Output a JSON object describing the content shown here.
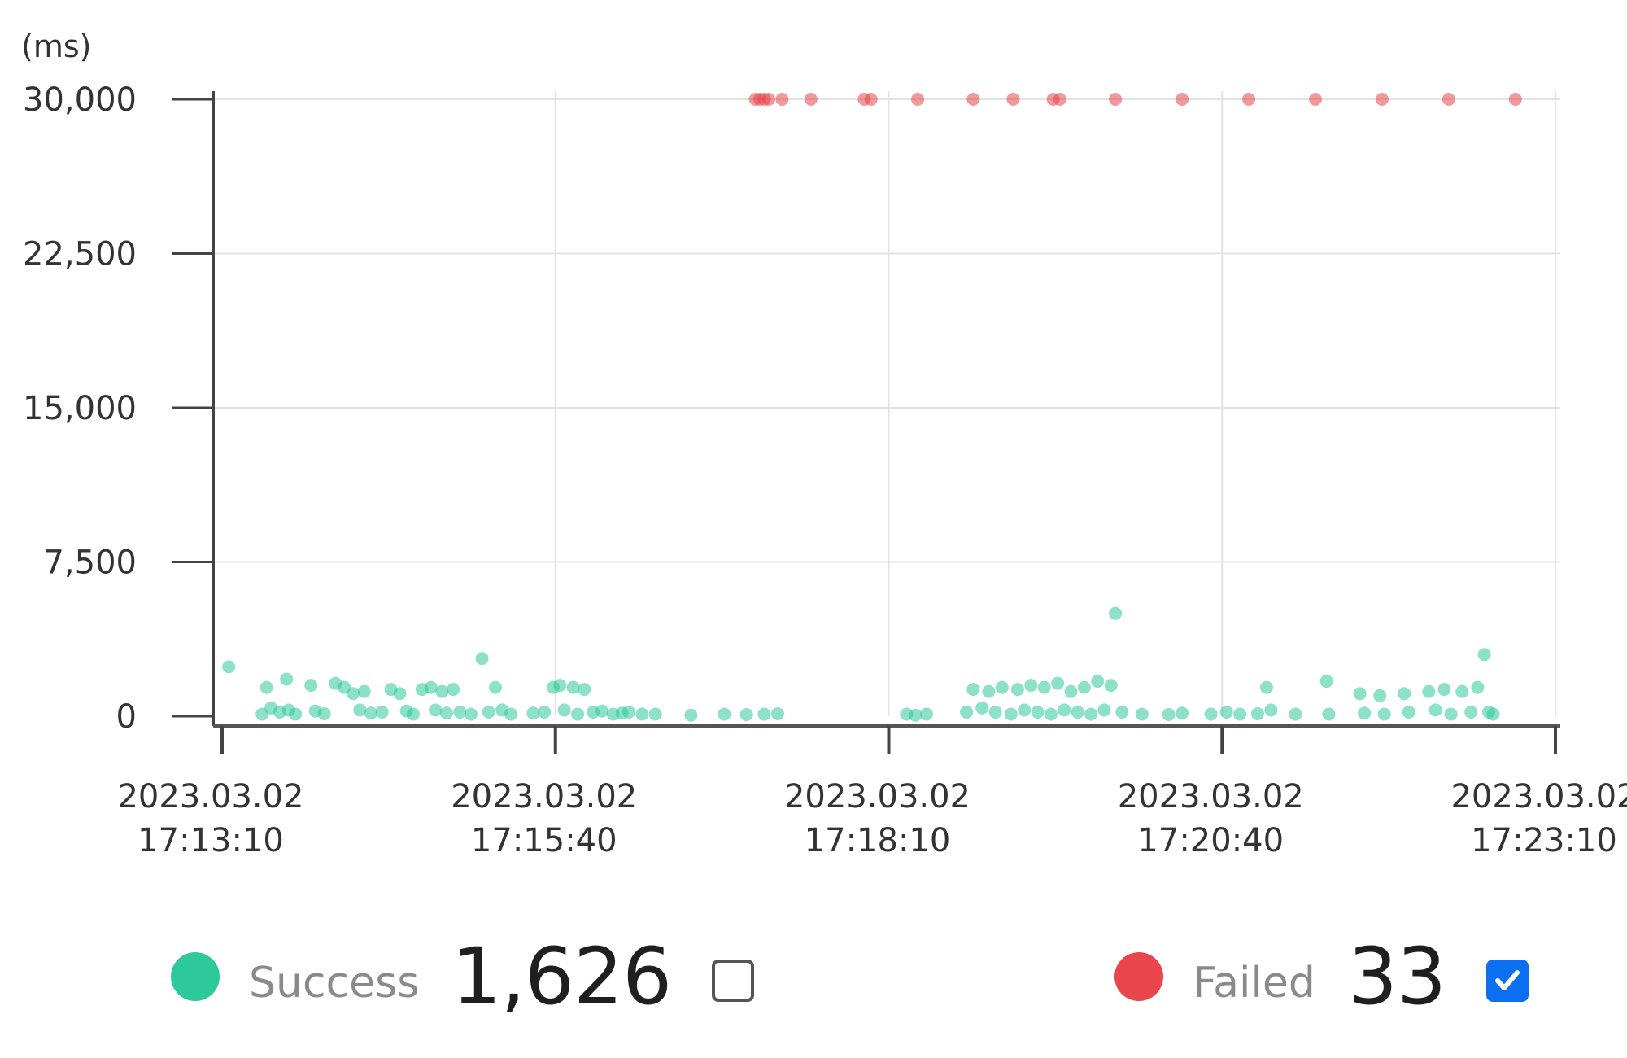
{
  "chart_data": {
    "type": "scatter",
    "title": "",
    "y_unit_label": "(ms)",
    "xlabel": "",
    "ylabel": "",
    "ylim": [
      0,
      30000
    ],
    "y_ticks": [
      {
        "value": 0,
        "label": "0"
      },
      {
        "value": 7500,
        "label": "7,500"
      },
      {
        "value": 15000,
        "label": "15,000"
      },
      {
        "value": 22500,
        "label": "22,500"
      },
      {
        "value": 30000,
        "label": "30,000"
      }
    ],
    "xlim_seconds_of_day": [
      62000,
      62600
    ],
    "x_ticks": [
      {
        "value": 62000,
        "date": "2023.03.02",
        "time": "17:13:10"
      },
      {
        "value": 62150,
        "date": "2023.03.02",
        "time": "17:15:40"
      },
      {
        "value": 62300,
        "date": "2023.03.02",
        "time": "17:18:10"
      },
      {
        "value": 62450,
        "date": "2023.03.02",
        "time": "17:20:40"
      },
      {
        "value": 62600,
        "date": "2023.03.02",
        "time": "17:23:10"
      }
    ],
    "grid": true,
    "series": [
      {
        "name": "Success",
        "color": "#2ec99a",
        "count_label": "1,626",
        "checked": false,
        "points": [
          [
            62003,
            2400
          ],
          [
            62018,
            100
          ],
          [
            62020,
            1400
          ],
          [
            62022,
            400
          ],
          [
            62026,
            200
          ],
          [
            62029,
            1800
          ],
          [
            62030,
            300
          ],
          [
            62033,
            100
          ],
          [
            62040,
            1500
          ],
          [
            62042,
            250
          ],
          [
            62046,
            120
          ],
          [
            62051,
            1600
          ],
          [
            62055,
            1400
          ],
          [
            62059,
            1100
          ],
          [
            62062,
            300
          ],
          [
            62064,
            1200
          ],
          [
            62067,
            150
          ],
          [
            62072,
            200
          ],
          [
            62076,
            1300
          ],
          [
            62080,
            1100
          ],
          [
            62083,
            250
          ],
          [
            62086,
            100
          ],
          [
            62090,
            1300
          ],
          [
            62094,
            1400
          ],
          [
            62096,
            300
          ],
          [
            62099,
            1200
          ],
          [
            62101,
            150
          ],
          [
            62104,
            1300
          ],
          [
            62107,
            200
          ],
          [
            62112,
            100
          ],
          [
            62117,
            2800
          ],
          [
            62120,
            200
          ],
          [
            62123,
            1400
          ],
          [
            62126,
            300
          ],
          [
            62130,
            100
          ],
          [
            62140,
            150
          ],
          [
            62145,
            200
          ],
          [
            62149,
            1400
          ],
          [
            62152,
            1500
          ],
          [
            62154,
            300
          ],
          [
            62158,
            1400
          ],
          [
            62160,
            100
          ],
          [
            62163,
            1300
          ],
          [
            62167,
            200
          ],
          [
            62171,
            250
          ],
          [
            62176,
            100
          ],
          [
            62180,
            150
          ],
          [
            62183,
            200
          ],
          [
            62189,
            100
          ],
          [
            62195,
            100
          ],
          [
            62211,
            50
          ],
          [
            62226,
            100
          ],
          [
            62236,
            80
          ],
          [
            62244,
            100
          ],
          [
            62250,
            120
          ],
          [
            62308,
            100
          ],
          [
            62312,
            50
          ],
          [
            62317,
            100
          ],
          [
            62335,
            200
          ],
          [
            62338,
            1300
          ],
          [
            62342,
            400
          ],
          [
            62345,
            1200
          ],
          [
            62348,
            200
          ],
          [
            62351,
            1400
          ],
          [
            62355,
            100
          ],
          [
            62358,
            1300
          ],
          [
            62361,
            300
          ],
          [
            62364,
            1500
          ],
          [
            62367,
            200
          ],
          [
            62370,
            1400
          ],
          [
            62373,
            100
          ],
          [
            62376,
            1600
          ],
          [
            62379,
            300
          ],
          [
            62382,
            1200
          ],
          [
            62385,
            200
          ],
          [
            62388,
            1400
          ],
          [
            62391,
            100
          ],
          [
            62394,
            1700
          ],
          [
            62397,
            300
          ],
          [
            62400,
            1500
          ],
          [
            62402,
            5000
          ],
          [
            62405,
            200
          ],
          [
            62414,
            100
          ],
          [
            62426,
            80
          ],
          [
            62432,
            150
          ],
          [
            62445,
            100
          ],
          [
            62452,
            200
          ],
          [
            62458,
            100
          ],
          [
            62466,
            120
          ],
          [
            62470,
            1400
          ],
          [
            62472,
            300
          ],
          [
            62483,
            100
          ],
          [
            62497,
            1700
          ],
          [
            62498,
            100
          ],
          [
            62512,
            1100
          ],
          [
            62514,
            150
          ],
          [
            62521,
            1000
          ],
          [
            62523,
            100
          ],
          [
            62532,
            1100
          ],
          [
            62534,
            200
          ],
          [
            62543,
            1200
          ],
          [
            62546,
            300
          ],
          [
            62550,
            1300
          ],
          [
            62553,
            100
          ],
          [
            62558,
            1200
          ],
          [
            62562,
            200
          ],
          [
            62565,
            1400
          ],
          [
            62568,
            3000
          ],
          [
            62570,
            200
          ],
          [
            62572,
            100
          ]
        ]
      },
      {
        "name": "Failed",
        "color": "#e8464a",
        "count_label": "33",
        "checked": true,
        "points": [
          [
            62240,
            30000
          ],
          [
            62242,
            30000
          ],
          [
            62244,
            30000
          ],
          [
            62246,
            30000
          ],
          [
            62252,
            30000
          ],
          [
            62265,
            30000
          ],
          [
            62289,
            30000
          ],
          [
            62292,
            30000
          ],
          [
            62313,
            30000
          ],
          [
            62338,
            30000
          ],
          [
            62356,
            30000
          ],
          [
            62374,
            30000
          ],
          [
            62377,
            30000
          ],
          [
            62402,
            30000
          ],
          [
            62432,
            30000
          ],
          [
            62462,
            30000
          ],
          [
            62492,
            30000
          ],
          [
            62522,
            30000
          ],
          [
            62552,
            30000
          ],
          [
            62582,
            30000
          ]
        ]
      }
    ]
  }
}
